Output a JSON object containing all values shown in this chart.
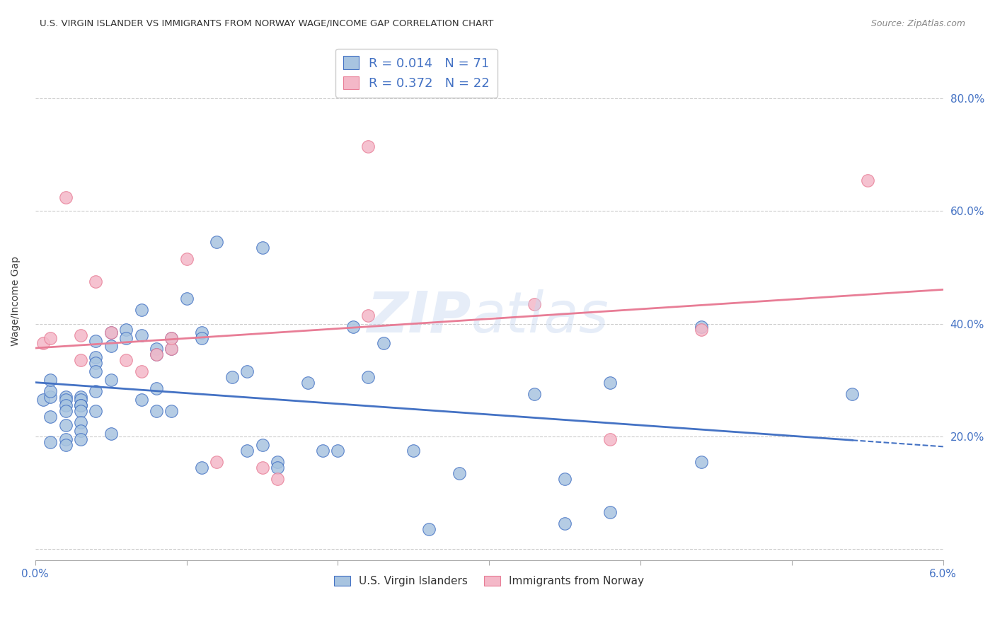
{
  "title": "U.S. VIRGIN ISLANDER VS IMMIGRANTS FROM NORWAY WAGE/INCOME GAP CORRELATION CHART",
  "source": "Source: ZipAtlas.com",
  "ylabel": "Wage/Income Gap",
  "xlim": [
    0.0,
    0.06
  ],
  "ylim": [
    -0.02,
    0.9
  ],
  "blue_color": "#a8c4e0",
  "pink_color": "#f4b8c8",
  "blue_line_color": "#4472c4",
  "pink_line_color": "#e87d96",
  "legend_text_color": "#4472c4",
  "blue_scatter_x": [
    0.0005,
    0.001,
    0.001,
    0.001,
    0.001,
    0.001,
    0.002,
    0.002,
    0.002,
    0.002,
    0.002,
    0.002,
    0.002,
    0.003,
    0.003,
    0.003,
    0.003,
    0.003,
    0.003,
    0.003,
    0.003,
    0.004,
    0.004,
    0.004,
    0.004,
    0.004,
    0.004,
    0.005,
    0.005,
    0.005,
    0.005,
    0.006,
    0.006,
    0.007,
    0.007,
    0.007,
    0.008,
    0.008,
    0.008,
    0.008,
    0.009,
    0.009,
    0.009,
    0.01,
    0.011,
    0.011,
    0.011,
    0.012,
    0.013,
    0.014,
    0.014,
    0.015,
    0.015,
    0.016,
    0.016,
    0.018,
    0.019,
    0.02,
    0.021,
    0.022,
    0.023,
    0.025,
    0.026,
    0.028,
    0.033,
    0.035,
    0.035,
    0.038,
    0.038,
    0.044,
    0.044,
    0.054
  ],
  "blue_scatter_y": [
    0.265,
    0.27,
    0.28,
    0.3,
    0.19,
    0.235,
    0.27,
    0.265,
    0.255,
    0.245,
    0.22,
    0.195,
    0.185,
    0.27,
    0.265,
    0.255,
    0.255,
    0.245,
    0.225,
    0.21,
    0.195,
    0.37,
    0.34,
    0.33,
    0.315,
    0.28,
    0.245,
    0.385,
    0.36,
    0.3,
    0.205,
    0.39,
    0.375,
    0.425,
    0.38,
    0.265,
    0.355,
    0.345,
    0.285,
    0.245,
    0.375,
    0.355,
    0.245,
    0.445,
    0.385,
    0.375,
    0.145,
    0.545,
    0.305,
    0.315,
    0.175,
    0.535,
    0.185,
    0.155,
    0.145,
    0.295,
    0.175,
    0.175,
    0.395,
    0.305,
    0.365,
    0.175,
    0.035,
    0.135,
    0.275,
    0.045,
    0.125,
    0.065,
    0.295,
    0.395,
    0.155,
    0.275
  ],
  "pink_scatter_x": [
    0.0005,
    0.001,
    0.002,
    0.003,
    0.003,
    0.004,
    0.005,
    0.006,
    0.007,
    0.008,
    0.009,
    0.009,
    0.01,
    0.012,
    0.015,
    0.016,
    0.022,
    0.022,
    0.033,
    0.038,
    0.044,
    0.055
  ],
  "pink_scatter_y": [
    0.365,
    0.375,
    0.625,
    0.38,
    0.335,
    0.475,
    0.385,
    0.335,
    0.315,
    0.345,
    0.355,
    0.375,
    0.515,
    0.155,
    0.145,
    0.125,
    0.715,
    0.415,
    0.435,
    0.195,
    0.39,
    0.655
  ],
  "background_color": "#ffffff",
  "grid_color": "#cccccc"
}
